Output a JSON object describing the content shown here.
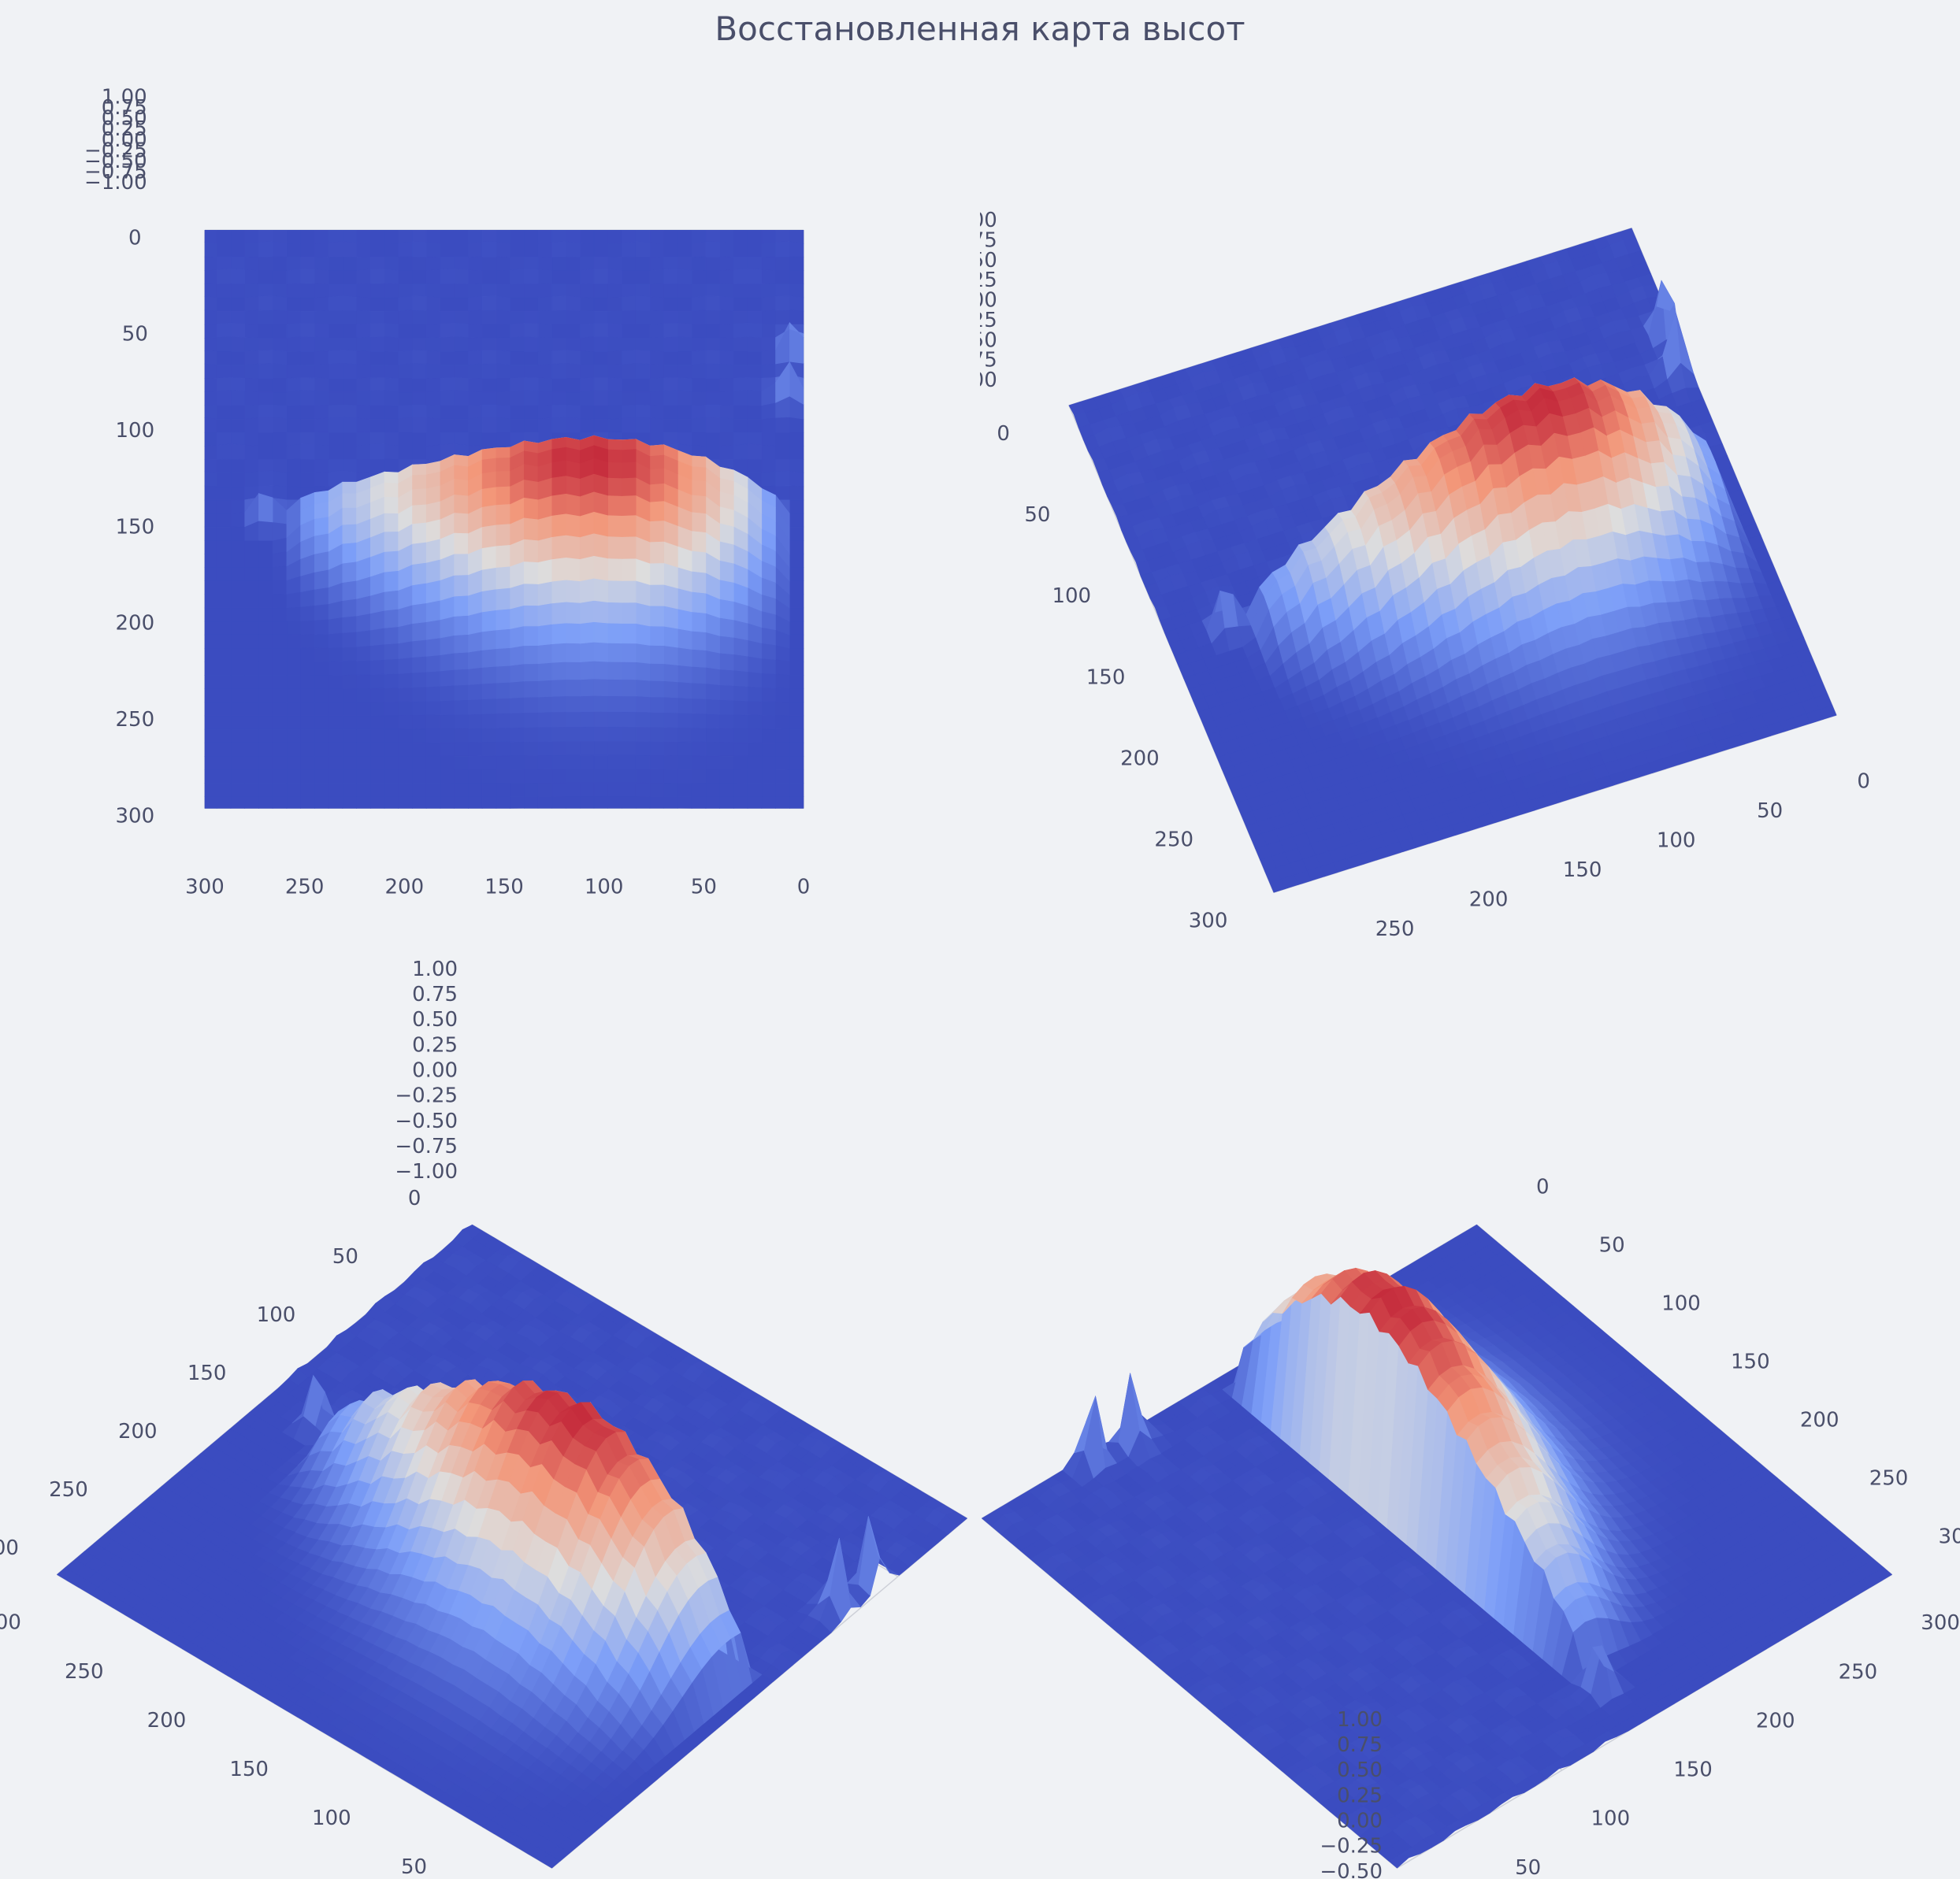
{
  "chart_data": {
    "type": "surface3d",
    "title": "Восстановленная карта высот",
    "colormap": "coolwarm",
    "colors": {
      "background": "#f0f2f5",
      "pane": "#e9ebee",
      "grid": "#cdd0d8",
      "text": "#4a4f6a",
      "low": "#3b4cc0",
      "mid": "#dddddd",
      "high": "#b40426"
    },
    "grid_size": 300,
    "x_range": [
      0,
      300
    ],
    "y_range": [
      0,
      300
    ],
    "zlim": [
      -1,
      1
    ],
    "grid": true,
    "xy_ticks": [
      "0",
      "50",
      "100",
      "150",
      "200",
      "250",
      "300"
    ],
    "z_ticks": [
      "−1.00",
      "−0.75",
      "−0.50",
      "−0.25",
      "0.00",
      "0.25",
      "0.50",
      "0.75",
      "1.00"
    ],
    "surface": {
      "base_level": -1.0,
      "main_ridge": {
        "x_center": 150,
        "y_range": [
          10,
          260
        ],
        "peak_value": 1.0,
        "peak_at": {
          "x": 155,
          "y": 75
        }
      },
      "spikes": [
        {
          "x": 148,
          "y": 270,
          "value": -0.35
        },
        {
          "x": 62,
          "y": 5,
          "value": -0.2
        },
        {
          "x": 85,
          "y": 8,
          "value": -0.25
        }
      ]
    },
    "views": [
      {
        "name": "view-1",
        "elev": 75,
        "azim": -90
      },
      {
        "name": "view-2",
        "elev": 60,
        "azim": -70
      },
      {
        "name": "view-3",
        "elev": 45,
        "azim": -130
      },
      {
        "name": "view-4",
        "elev": 45,
        "azim": 40
      }
    ]
  }
}
